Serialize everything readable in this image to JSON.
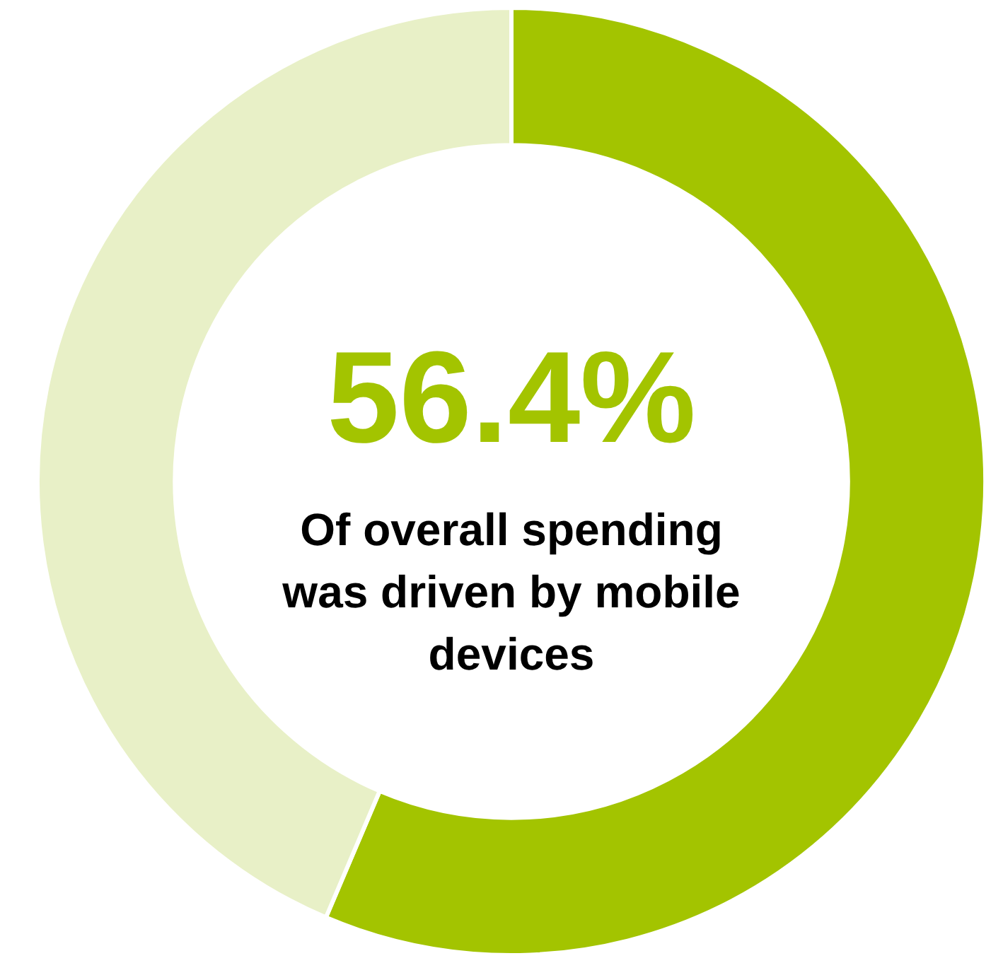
{
  "chart_data": {
    "type": "donut",
    "categories": [
      null,
      null
    ],
    "values": [
      56.4,
      43.6
    ],
    "colors": [
      "#a3c400",
      "#e8f0c7"
    ],
    "value_labels": [
      "56.4%",
      null
    ],
    "annotations": [
      "Of overall spending was driven by mobile devices"
    ],
    "legend": false
  }
}
